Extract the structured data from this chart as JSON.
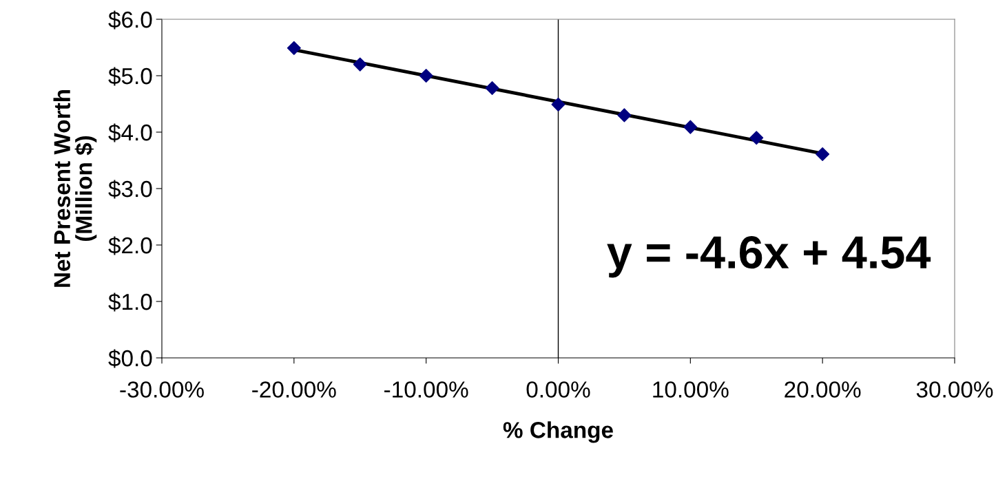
{
  "chart_data": {
    "type": "scatter",
    "xlabel": "% Change",
    "ylabel": "Net Present Worth\n(Million $)",
    "x": [
      -0.2,
      -0.15,
      -0.1,
      -0.05,
      0,
      0.05,
      0.1,
      0.15,
      0.2
    ],
    "series": [
      {
        "color": "#000080",
        "marker": "diamond",
        "values": [
          5.49,
          5.2,
          5.0,
          4.78,
          4.49,
          4.3,
          4.09,
          3.9,
          3.61
        ]
      },
      {
        "type": "line",
        "color": "#000000",
        "marker": "none",
        "line_style": "solid",
        "x": [
          -0.2,
          0.2
        ],
        "values": [
          5.46,
          3.62
        ]
      }
    ],
    "xlim": [
      -0.3,
      0.3
    ],
    "xticks": [
      {
        "value": -0.3,
        "label": "-30.00%"
      },
      {
        "value": -0.2,
        "label": "-20.00%"
      },
      {
        "value": -0.1,
        "label": "-10.00%"
      },
      {
        "value": 0,
        "label": "0.00%"
      },
      {
        "value": 0.1,
        "label": "10.00%"
      },
      {
        "value": 0.2,
        "label": "20.00%"
      },
      {
        "value": 0.3,
        "label": "30.00%"
      }
    ],
    "ylim": [
      0,
      6
    ],
    "yticks": [
      {
        "value": 0,
        "label": "$0.0"
      },
      {
        "value": 1,
        "label": "$1.0"
      },
      {
        "value": 2,
        "label": "$2.0"
      },
      {
        "value": 3,
        "label": "$3.0"
      },
      {
        "value": 4,
        "label": "$4.0"
      },
      {
        "value": 5,
        "label": "$5.0"
      },
      {
        "value": 6,
        "label": "$6.0"
      }
    ],
    "ref_lines": [
      {
        "axis": "x",
        "value": 0,
        "color": "#000000"
      }
    ],
    "annotations": [
      "y = -4.6x + 4.54"
    ],
    "grid": false
  }
}
